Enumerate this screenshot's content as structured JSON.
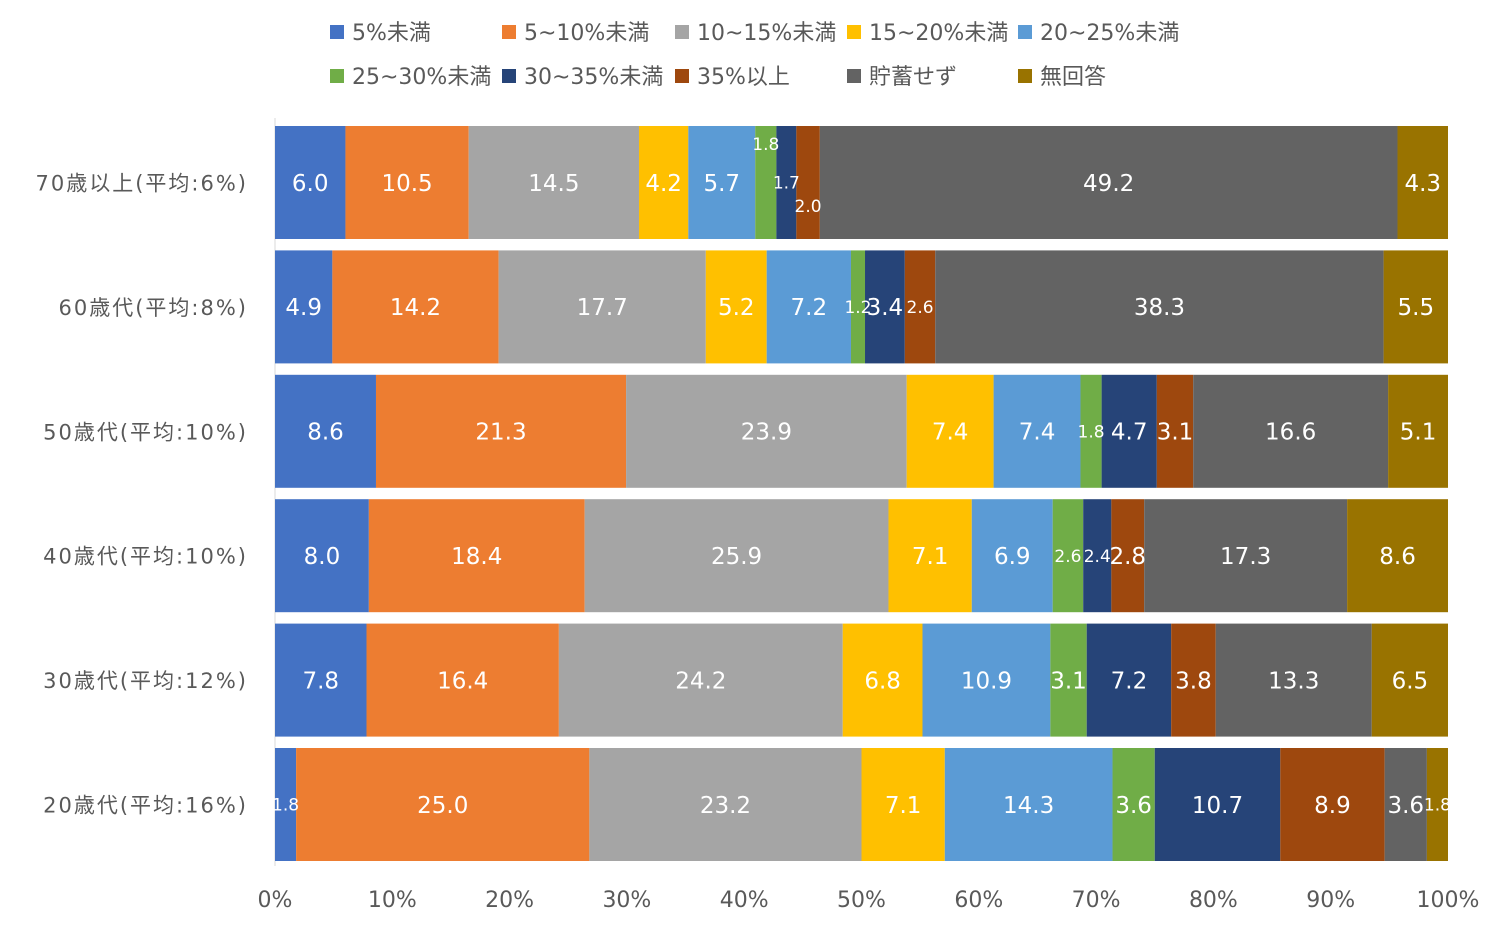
{
  "chart_data": {
    "type": "bar",
    "orientation": "horizontal",
    "stacked": "percent",
    "categories": [
      "70歳以上(平均:6%)",
      "60歳代(平均:8%)",
      "50歳代(平均:10%)",
      "40歳代(平均:10%)",
      "30歳代(平均:12%)",
      "20歳代(平均:16%)"
    ],
    "series": [
      {
        "name": "5%未満",
        "color": "#4472C4",
        "values": [
          6.0,
          4.9,
          8.6,
          8.0,
          7.8,
          1.8
        ]
      },
      {
        "name": "5~10%未満",
        "color": "#ED7D31",
        "values": [
          10.5,
          14.2,
          21.3,
          18.4,
          16.4,
          25.0
        ]
      },
      {
        "name": "10~15%未満",
        "color": "#A5A5A5",
        "values": [
          14.5,
          17.7,
          23.9,
          25.9,
          24.2,
          23.2
        ]
      },
      {
        "name": "15~20%未満",
        "color": "#FFC000",
        "values": [
          4.2,
          5.2,
          7.4,
          7.1,
          6.8,
          7.1
        ]
      },
      {
        "name": "20~25%未満",
        "color": "#5B9BD5",
        "values": [
          5.7,
          7.2,
          7.4,
          6.9,
          10.9,
          14.3
        ]
      },
      {
        "name": "25~30%未満",
        "color": "#70AD47",
        "values": [
          1.8,
          1.2,
          1.8,
          2.6,
          3.1,
          3.6
        ]
      },
      {
        "name": "30~35%未満",
        "color": "#264478",
        "values": [
          1.7,
          3.4,
          4.7,
          2.4,
          7.2,
          10.7
        ]
      },
      {
        "name": "35%以上",
        "color": "#9E480E",
        "values": [
          2.0,
          2.6,
          3.1,
          2.8,
          3.8,
          8.9
        ]
      },
      {
        "name": "貯蓄せず",
        "color": "#636363",
        "values": [
          49.2,
          38.3,
          16.6,
          17.3,
          13.3,
          3.6
        ]
      },
      {
        "name": "無回答",
        "color": "#997300",
        "values": [
          4.3,
          5.5,
          5.1,
          8.6,
          6.5,
          1.8
        ]
      }
    ],
    "x_ticks": [
      "0%",
      "10%",
      "20%",
      "30%",
      "40%",
      "50%",
      "60%",
      "70%",
      "80%",
      "90%",
      "100%"
    ],
    "xlim": [
      0,
      100
    ],
    "legend_position": "top",
    "grid": false
  }
}
